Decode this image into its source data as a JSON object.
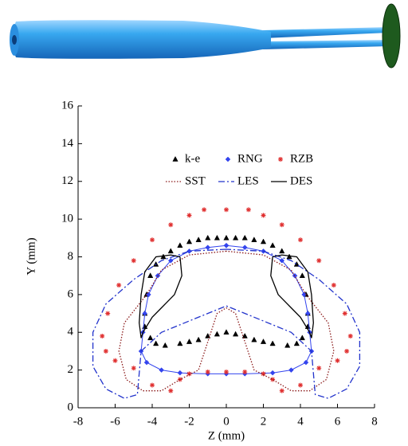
{
  "chart_data": {
    "type": "line",
    "xlabel": "Z (mm)",
    "ylabel": "Y (mm)",
    "xlim": [
      -8,
      8
    ],
    "xticks": [
      -8,
      -6,
      -4,
      -2,
      0,
      2,
      4,
      6,
      8
    ],
    "ylim": [
      0,
      16
    ],
    "yticks": [
      0,
      2,
      4,
      6,
      8,
      10,
      12,
      14,
      16
    ],
    "grid": false,
    "series": [
      {
        "name": "k-e",
        "color": "#000000",
        "marker": "triangle",
        "dash": "none",
        "x": [
          -3.8,
          -3.4,
          -3.0,
          -2.5,
          -2.0,
          -1.5,
          -1.0,
          -0.5,
          0,
          0.5,
          1.0,
          1.5,
          2.0,
          2.5,
          3.0,
          3.4,
          3.8,
          -4.1,
          -4.3,
          -4.4,
          -4.4,
          -4.1,
          -3.8,
          -3.3,
          -2.5,
          -2.0,
          -1.5,
          -1.0,
          -0.5,
          0,
          0.5,
          1.0,
          1.5,
          2.0,
          2.5,
          3.3,
          3.8,
          4.1,
          4.4,
          4.4,
          4.3,
          4.1
        ],
        "values": [
          7.6,
          8.0,
          8.3,
          8.6,
          8.8,
          8.9,
          9.0,
          9.0,
          9.0,
          9.0,
          9.0,
          8.9,
          8.8,
          8.6,
          8.3,
          8.0,
          7.6,
          7.0,
          6.0,
          5.0,
          4.3,
          3.7,
          3.4,
          3.3,
          3.4,
          3.5,
          3.6,
          3.8,
          3.9,
          4.0,
          3.9,
          3.8,
          3.6,
          3.5,
          3.4,
          3.3,
          3.4,
          3.7,
          4.3,
          5.0,
          6.0,
          7.0
        ]
      },
      {
        "name": "RNG",
        "color": "#3344ee",
        "marker": "diamond",
        "dash": "solid",
        "x": [
          0,
          -1,
          -2,
          -3,
          -3.7,
          -4.2,
          -4.4,
          -4.5,
          -4.6,
          -4.3,
          -3.5,
          -2.5,
          -1,
          0,
          1,
          2.5,
          3.5,
          4.3,
          4.6,
          4.5,
          4.4,
          4.2,
          3.7,
          3,
          2,
          1,
          0
        ],
        "values": [
          8.6,
          8.5,
          8.3,
          7.8,
          7,
          6,
          5,
          4,
          3,
          2.4,
          2,
          1.85,
          1.8,
          1.8,
          1.8,
          1.85,
          2,
          2.4,
          3,
          4,
          5,
          6,
          7,
          7.8,
          8.3,
          8.5,
          8.6
        ]
      },
      {
        "name": "RZB",
        "color": "#e03030",
        "marker": "asterisk",
        "dash": "none",
        "x": [
          0,
          -1.2,
          -2,
          -3,
          -4,
          -5,
          -5.8,
          -6.4,
          -6.7,
          -6.5,
          -6,
          -5,
          -4,
          -3,
          -2.5,
          -2,
          -1,
          0,
          1,
          2,
          2.5,
          3,
          4,
          5,
          6,
          6.5,
          6.7,
          6.4,
          5.8,
          5,
          4,
          3,
          2,
          1.2
        ],
        "values": [
          10.5,
          10.5,
          10.2,
          9.7,
          8.9,
          7.8,
          6.5,
          5,
          3.8,
          3,
          2.5,
          2.1,
          1.2,
          0.9,
          1.5,
          1.8,
          1.9,
          1.9,
          1.9,
          1.8,
          1.5,
          0.9,
          1.2,
          2.1,
          2.5,
          3,
          3.8,
          5,
          6.5,
          7.8,
          8.9,
          9.7,
          10.2,
          10.5
        ]
      },
      {
        "name": "SST",
        "color": "#8b1a1a",
        "marker": "none",
        "dash": "dotted",
        "x": [
          0,
          -2,
          -3.5,
          -4.3,
          -5.5,
          -5.8,
          -5.4,
          -4.5,
          -3.5,
          -2.5,
          -1.5,
          -1,
          -0.5,
          0,
          0.5,
          1,
          1.5,
          2.5,
          3.5,
          4.5,
          5.4,
          5.8,
          5.5,
          4.3,
          3.5,
          2,
          0
        ],
        "values": [
          8.3,
          8.1,
          7.3,
          6,
          4.5,
          3,
          1.5,
          0.9,
          0.9,
          1.5,
          2,
          3.5,
          5,
          5.3,
          5,
          3.5,
          2,
          1.5,
          0.9,
          0.9,
          1.5,
          3,
          4.5,
          6,
          7.3,
          8.1,
          8.3
        ]
      },
      {
        "name": "LES",
        "color": "#2233cc",
        "marker": "none",
        "dash": "dashdot",
        "x": [
          0,
          -2,
          -3.5,
          -5,
          -6.5,
          -7.2,
          -7.2,
          -6.5,
          -5.5,
          -4.8,
          -4.6,
          -3.5,
          -2,
          0,
          2,
          3.5,
          4.6,
          4.8,
          5.5,
          6.5,
          7.2,
          7.2,
          6.5,
          5,
          3.5,
          2,
          0
        ],
        "values": [
          8.4,
          8.3,
          7.8,
          6.8,
          5.5,
          4,
          2.2,
          1,
          0.5,
          0.7,
          3,
          4,
          4.6,
          5.4,
          4.6,
          4,
          3,
          0.7,
          0.5,
          1,
          2.2,
          4,
          5.5,
          6.8,
          7.8,
          8.3,
          8.4
        ]
      },
      {
        "name": "DES",
        "color": "#000000",
        "marker": "none",
        "dash": "solid",
        "x": [
          -2.5,
          -2.4,
          -2.8,
          -3.5,
          -4,
          -4.5,
          -4.6,
          -4.7,
          -4.6,
          -4.4,
          -3.8,
          -3,
          -2.5,
          null,
          2.5,
          2.4,
          2.8,
          3.5,
          4,
          4.5,
          4.6,
          4.7,
          4.6,
          4.4,
          3.8,
          3,
          2.5
        ],
        "values": [
          8,
          7,
          6,
          5.3,
          4.8,
          4,
          3.7,
          4.5,
          6,
          7.2,
          8,
          8.1,
          8,
          null,
          8,
          7,
          6,
          5.3,
          4.8,
          4,
          3.7,
          4.5,
          6,
          7.2,
          8,
          8.1,
          8
        ]
      }
    ]
  }
}
